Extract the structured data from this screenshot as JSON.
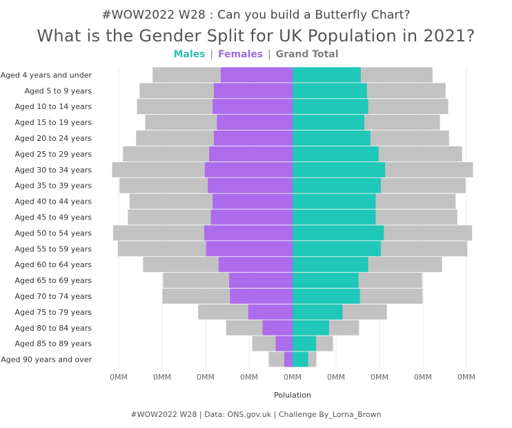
{
  "header": {
    "challenge_title": "#WOW2022 W28 : Can you build a Butterfly Chart?",
    "main_title": "What is the Gender Split for UK Population in 2021?"
  },
  "legend": {
    "males": "Males",
    "separator": "|",
    "females": "Females",
    "grand_total": "Grand Total"
  },
  "footer": {
    "credit": "#WOW2022 W28 | Data: ONS.gov.uk | Challenge By_Lorna_Brown"
  },
  "colors": {
    "males": "#1fc8b9",
    "females": "#ad6cec",
    "grand_total": "#c2c2c2",
    "males_text": "#2fbfb2",
    "females_text": "#9d6fe0",
    "grand_total_text": "#808080",
    "grid": "#e8e8e8"
  },
  "chart_data": {
    "type": "bar",
    "subtype": "butterfly",
    "orientation": "horizontal",
    "xlabel": "Polulation",
    "xlim": [
      -4.1,
      4.1
    ],
    "x_ticks": [
      -4,
      -3,
      -2,
      -1,
      0,
      1,
      2,
      3,
      4
    ],
    "x_tick_labels": [
      "0MM",
      "0MM",
      "0MM",
      "0MM",
      "0MM",
      "0MM",
      "0MM",
      "0MM",
      "0MM"
    ],
    "categories": [
      "Aged 4 years and under",
      "Aged 5 to 9 years",
      "Aged 10 to 14 years",
      "Aged 15 to 19 years",
      "Aged 20 to 24 years",
      "Aged 25 to 29 years",
      "Aged 30 to 34 years",
      "Aged 35 to 39 years",
      "Aged 40 to 44 years",
      "Aged 45 to 49 years",
      "Aged 50 to 54 years",
      "Aged 55 to 59 years",
      "Aged 60 to 64 years",
      "Aged 65 to 69 years",
      "Aged 70 to 74 years",
      "Aged 75 to 79 years",
      "Aged 80 to 84 years",
      "Aged 85 to 89 years",
      "Aged 90 years and over"
    ],
    "series": [
      {
        "name": "Females",
        "side": "left",
        "values": [
          1.65,
          1.81,
          1.84,
          1.74,
          1.81,
          1.92,
          2.02,
          1.95,
          1.84,
          1.88,
          2.03,
          1.99,
          1.7,
          1.46,
          1.44,
          1.02,
          0.69,
          0.39,
          0.19
        ]
      },
      {
        "name": "Males",
        "side": "right",
        "values": [
          1.57,
          1.71,
          1.74,
          1.65,
          1.79,
          1.98,
          2.13,
          2.03,
          1.91,
          1.91,
          2.1,
          2.03,
          1.74,
          1.52,
          1.55,
          1.15,
          0.84,
          0.54,
          0.36
        ]
      },
      {
        "name": "Grand Total",
        "side": "both",
        "values": [
          3.22,
          3.52,
          3.58,
          3.39,
          3.6,
          3.9,
          4.15,
          3.98,
          3.75,
          3.79,
          4.13,
          4.02,
          3.44,
          2.98,
          2.99,
          2.17,
          1.53,
          0.93,
          0.55
        ]
      }
    ]
  }
}
